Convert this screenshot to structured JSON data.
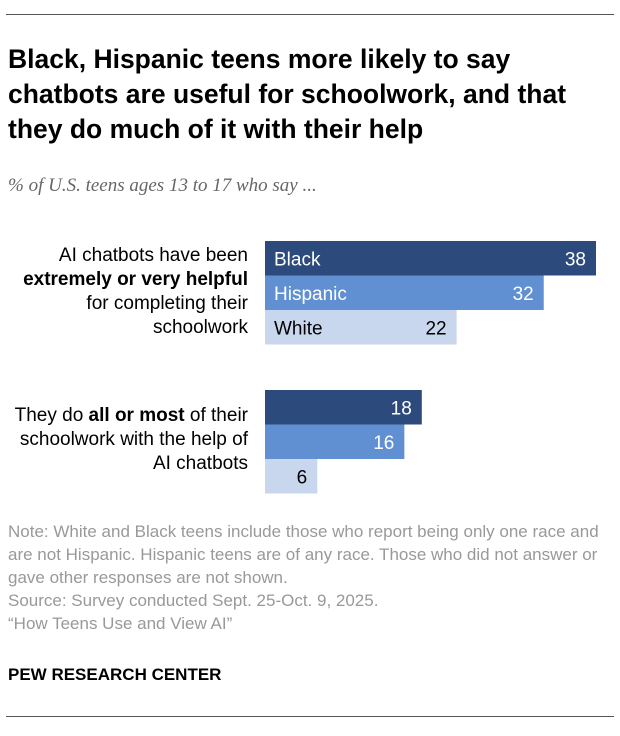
{
  "title": "Black, Hispanic teens more likely to say chatbots are useful for schoolwork, and that they do much of it with their help",
  "subtitle": "% of U.S. teens ages 13 to 17 who say ...",
  "chart_data": {
    "type": "bar",
    "orientation": "horizontal",
    "categories": [
      {
        "parts": [
          {
            "t": "AI chatbots have been ",
            "b": false
          },
          {
            "t": "extremely or very helpful",
            "b": true
          },
          {
            "t": " for completing their schoolwork",
            "b": false
          }
        ]
      },
      {
        "parts": [
          {
            "t": "They do ",
            "b": false
          },
          {
            "t": "all or most",
            "b": true
          },
          {
            "t": " of their schoolwork with the help of AI chatbots",
            "b": false
          }
        ]
      }
    ],
    "series": [
      {
        "name": "Black",
        "color": "#2c4a7c",
        "text_color": "#ffffff",
        "values": [
          38,
          18
        ]
      },
      {
        "name": "Hispanic",
        "color": "#6190d2",
        "text_color": "#ffffff",
        "values": [
          32,
          16
        ]
      },
      {
        "name": "White",
        "color": "#c9d7ee",
        "text_color": "#000000",
        "values": [
          22,
          6
        ]
      }
    ],
    "xlim": [
      0,
      38
    ],
    "grid": false,
    "legend": "inline-first-group"
  },
  "note": "Note: White and Black teens include those who report being only one race and are not Hispanic. Hispanic teens are of any race. Those who did not answer or gave other responses are not shown.",
  "source": "Source: Survey conducted Sept. 25-Oct. 9, 2025.",
  "report": "“How Teens Use and View AI”",
  "brand": "PEW RESEARCH CENTER"
}
